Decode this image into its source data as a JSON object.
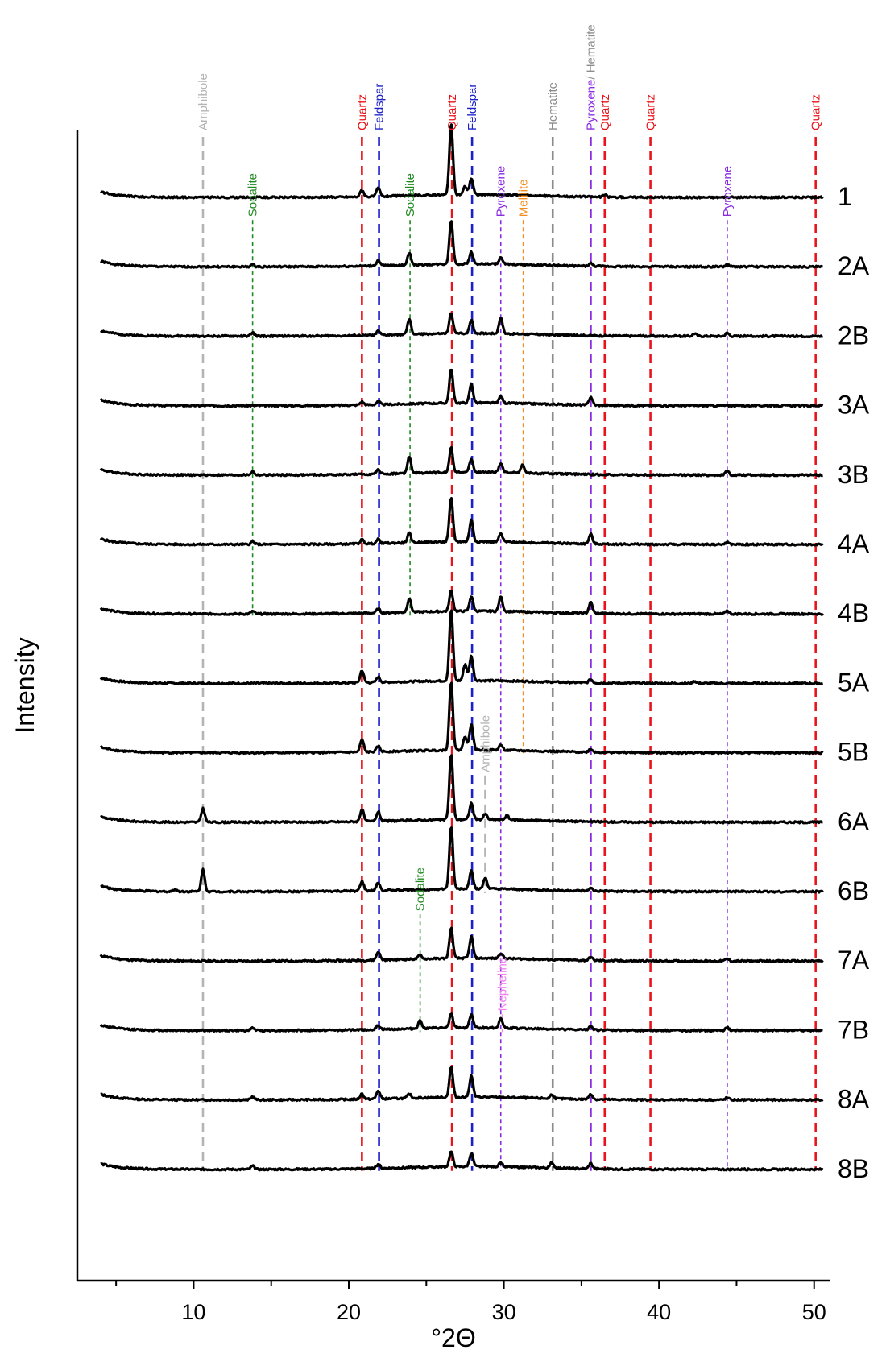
{
  "chart_data": {
    "type": "line",
    "title": "",
    "xlabel": "°2Θ",
    "ylabel": "Intensity",
    "xlim": [
      2.5,
      51
    ],
    "xticks": [
      10,
      20,
      30,
      40,
      50
    ],
    "xtick_labels": [
      "10",
      "20",
      "30",
      "40",
      "50"
    ],
    "grid": false,
    "legend": "none",
    "base_color": "#000000",
    "series": [
      {
        "name": "1",
        "peaks": [
          [
            20.85,
            0.25
          ],
          [
            21.9,
            0.3
          ],
          [
            26.6,
            2.6
          ],
          [
            27.5,
            0.3
          ],
          [
            27.9,
            0.6
          ],
          [
            36.5,
            0.08
          ]
        ]
      },
      {
        "name": "2A",
        "peaks": [
          [
            13.8,
            0.08
          ],
          [
            21.9,
            0.2
          ],
          [
            23.9,
            0.45
          ],
          [
            26.6,
            1.6
          ],
          [
            27.9,
            0.45
          ],
          [
            29.8,
            0.25
          ],
          [
            35.6,
            0.1
          ],
          [
            44.4,
            0.08
          ]
        ]
      },
      {
        "name": "2B",
        "peaks": [
          [
            13.8,
            0.12
          ],
          [
            21.9,
            0.15
          ],
          [
            23.9,
            0.55
          ],
          [
            26.6,
            0.75
          ],
          [
            27.9,
            0.5
          ],
          [
            29.8,
            0.6
          ],
          [
            42.3,
            0.1
          ],
          [
            44.4,
            0.12
          ]
        ]
      },
      {
        "name": "3A",
        "peaks": [
          [
            20.85,
            0.12
          ],
          [
            21.9,
            0.12
          ],
          [
            26.6,
            1.25
          ],
          [
            27.9,
            0.7
          ],
          [
            29.8,
            0.25
          ],
          [
            35.6,
            0.3
          ]
        ]
      },
      {
        "name": "3B",
        "peaks": [
          [
            13.8,
            0.12
          ],
          [
            21.9,
            0.15
          ],
          [
            23.9,
            0.6
          ],
          [
            26.6,
            0.9
          ],
          [
            27.9,
            0.5
          ],
          [
            29.8,
            0.35
          ],
          [
            31.2,
            0.3
          ],
          [
            44.4,
            0.15
          ]
        ]
      },
      {
        "name": "4A",
        "peaks": [
          [
            13.8,
            0.1
          ],
          [
            20.85,
            0.15
          ],
          [
            21.9,
            0.15
          ],
          [
            23.9,
            0.35
          ],
          [
            26.6,
            1.6
          ],
          [
            27.9,
            0.8
          ],
          [
            29.8,
            0.3
          ],
          [
            35.6,
            0.35
          ],
          [
            44.4,
            0.08
          ]
        ]
      },
      {
        "name": "4B",
        "peaks": [
          [
            13.8,
            0.1
          ],
          [
            21.9,
            0.15
          ],
          [
            23.9,
            0.5
          ],
          [
            26.6,
            0.75
          ],
          [
            27.9,
            0.55
          ],
          [
            29.8,
            0.55
          ],
          [
            35.6,
            0.4
          ],
          [
            44.4,
            0.12
          ]
        ]
      },
      {
        "name": "5A",
        "peaks": [
          [
            20.85,
            0.45
          ],
          [
            21.9,
            0.2
          ],
          [
            26.6,
            2.6
          ],
          [
            27.5,
            0.6
          ],
          [
            27.9,
            0.9
          ],
          [
            35.6,
            0.12
          ],
          [
            42.3,
            0.08
          ]
        ]
      },
      {
        "name": "5B",
        "peaks": [
          [
            20.85,
            0.45
          ],
          [
            21.9,
            0.2
          ],
          [
            26.6,
            2.5
          ],
          [
            27.5,
            0.5
          ],
          [
            27.9,
            0.95
          ],
          [
            29.8,
            0.2
          ],
          [
            35.6,
            0.12
          ]
        ]
      },
      {
        "name": "6A",
        "peaks": [
          [
            10.6,
            0.5
          ],
          [
            20.85,
            0.45
          ],
          [
            21.9,
            0.35
          ],
          [
            26.6,
            2.4
          ],
          [
            27.9,
            0.6
          ],
          [
            28.8,
            0.2
          ],
          [
            30.2,
            0.15
          ]
        ]
      },
      {
        "name": "6B",
        "peaks": [
          [
            8.8,
            0.08
          ],
          [
            10.6,
            0.8
          ],
          [
            20.85,
            0.35
          ],
          [
            21.9,
            0.3
          ],
          [
            26.6,
            2.3
          ],
          [
            27.9,
            0.7
          ],
          [
            28.8,
            0.4
          ],
          [
            35.6,
            0.1
          ]
        ]
      },
      {
        "name": "7A",
        "peaks": [
          [
            21.9,
            0.3
          ],
          [
            24.6,
            0.15
          ],
          [
            26.6,
            1.1
          ],
          [
            27.9,
            0.8
          ],
          [
            29.8,
            0.2
          ],
          [
            35.6,
            0.12
          ],
          [
            44.4,
            0.08
          ]
        ]
      },
      {
        "name": "7B",
        "peaks": [
          [
            13.8,
            0.1
          ],
          [
            21.9,
            0.15
          ],
          [
            24.6,
            0.3
          ],
          [
            26.6,
            0.5
          ],
          [
            27.9,
            0.5
          ],
          [
            29.8,
            0.35
          ],
          [
            35.6,
            0.15
          ],
          [
            44.4,
            0.1
          ]
        ]
      },
      {
        "name": "8A",
        "peaks": [
          [
            13.8,
            0.12
          ],
          [
            20.85,
            0.2
          ],
          [
            21.9,
            0.3
          ],
          [
            23.9,
            0.15
          ],
          [
            26.6,
            1.1
          ],
          [
            27.9,
            0.8
          ],
          [
            33.1,
            0.15
          ],
          [
            35.6,
            0.2
          ],
          [
            44.4,
            0.08
          ]
        ]
      },
      {
        "name": "8B",
        "peaks": [
          [
            13.8,
            0.12
          ],
          [
            21.9,
            0.15
          ],
          [
            26.6,
            0.55
          ],
          [
            27.9,
            0.5
          ],
          [
            29.8,
            0.15
          ],
          [
            33.1,
            0.2
          ],
          [
            35.6,
            0.2
          ]
        ]
      }
    ],
    "annotations": [
      {
        "label": "Amphibole",
        "x": 10.6,
        "color": "#b4b4b4",
        "style": "dashed",
        "from": "top",
        "to": "8B"
      },
      {
        "label": "Quartz",
        "x": 20.85,
        "color": "#e8141b",
        "style": "dashed",
        "from": "top",
        "to": "8B"
      },
      {
        "label": "Feldspar",
        "x": 21.95,
        "color": "#1c20c8",
        "style": "dashed",
        "from": "top",
        "to": "8B"
      },
      {
        "label": "Quartz",
        "x": 26.65,
        "color": "#e8141b",
        "style": "dashed",
        "from": "top",
        "to": "8B"
      },
      {
        "label": "Feldspar",
        "x": 27.95,
        "color": "#1c20c8",
        "style": "dashed",
        "from": "top",
        "to": "8B"
      },
      {
        "label": "Hematite",
        "x": 33.15,
        "color": "#8c8c8c",
        "style": "dashed",
        "from": "top",
        "to": "8B"
      },
      {
        "label": "Pyroxene",
        "x": 35.6,
        "color": "#8a2be2",
        "style": "dashed",
        "from": "top",
        "to": "8B",
        "suffix": "/ Hematite",
        "suffix_color": "#8c8c8c"
      },
      {
        "label": "Quartz",
        "x": 36.5,
        "color": "#e8141b",
        "style": "dashed",
        "from": "top",
        "to": "8B"
      },
      {
        "label": "Quartz",
        "x": 39.45,
        "color": "#e8141b",
        "style": "dashed",
        "from": "top",
        "to": "8B"
      },
      {
        "label": "Quartz",
        "x": 50.1,
        "color": "#e8141b",
        "style": "dashed",
        "from": "top",
        "to": "8B"
      },
      {
        "label": "Sodalite",
        "x": 13.8,
        "color": "#1f8a1f",
        "style": "dotted",
        "from": "2A",
        "to": "4B"
      },
      {
        "label": "Sodalite",
        "x": 23.95,
        "color": "#1f8a1f",
        "style": "dotted",
        "from": "2A",
        "to": "4B"
      },
      {
        "label": "Pyroxene",
        "x": 29.8,
        "color": "#8a2be2",
        "style": "dotted",
        "from": "2A",
        "to": "8B"
      },
      {
        "label": "Melilite",
        "x": 31.25,
        "color": "#f28c1e",
        "style": "dotted",
        "from": "2A",
        "to": "5B"
      },
      {
        "label": "Pyroxene",
        "x": 44.4,
        "color": "#8a2be2",
        "style": "dotted",
        "from": "2A",
        "to": "8B"
      },
      {
        "label": "Amphibole",
        "x": 28.8,
        "color": "#b4b4b4",
        "style": "dashed",
        "from": "6A",
        "to": "6B"
      },
      {
        "label": "Sodalite",
        "x": 24.6,
        "color": "#1f8a1f",
        "style": "dotted",
        "from": "7A",
        "to": "7B"
      },
      {
        "label": "Nepheline",
        "x": 29.9,
        "color": "#ee82ee",
        "style": "dotted",
        "from": "7B",
        "to": "7B"
      }
    ]
  }
}
